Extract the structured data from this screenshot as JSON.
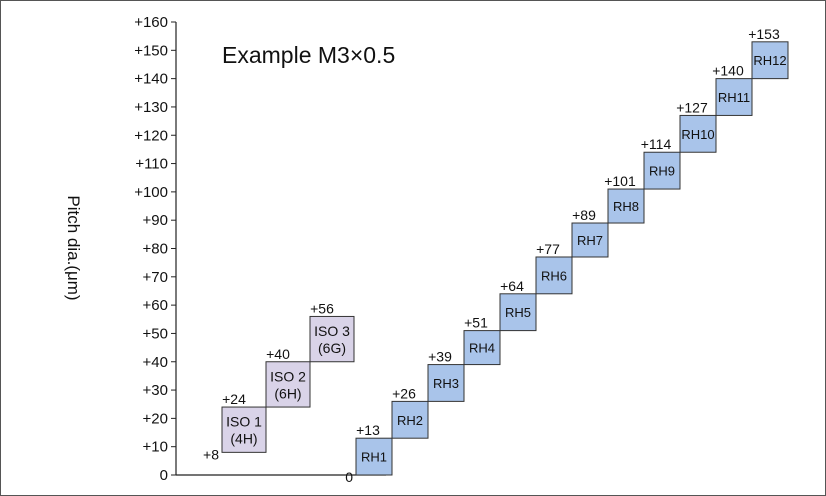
{
  "colors": {
    "frame": "#555555",
    "axis": "#222222",
    "iso_fill": "#d9d3e8",
    "rh_fill": "#a9c4ea",
    "box_stroke": "#333333"
  },
  "chart_data": {
    "type": "bar",
    "title": "Example M3×0.5",
    "ylabel": "Pitch dia.(μm)",
    "xlabel": "",
    "ylim": [
      0,
      160
    ],
    "ytick_step": 10,
    "ytick_labels": [
      "0",
      "+10",
      "+20",
      "+30",
      "+40",
      "+50",
      "+60",
      "+70",
      "+80",
      "+90",
      "+100",
      "+110",
      "+120",
      "+130",
      "+140",
      "+150",
      "+160"
    ],
    "grid": false,
    "series": [
      {
        "group": "iso",
        "boxes": [
          {
            "line1": "ISO 1",
            "line2": "(4H)",
            "low": 8,
            "high": 24,
            "low_label": "+8",
            "high_label": "+24"
          },
          {
            "line1": "ISO 2",
            "line2": "(6H)",
            "low": 24,
            "high": 40,
            "low_label": "",
            "high_label": "+40"
          },
          {
            "line1": "ISO 3",
            "line2": "(6G)",
            "low": 40,
            "high": 56,
            "low_label": "",
            "high_label": "+56"
          }
        ]
      },
      {
        "group": "rh",
        "boxes": [
          {
            "line1": "RH1",
            "low": 0,
            "high": 13,
            "low_label": "0",
            "high_label": "+13"
          },
          {
            "line1": "RH2",
            "low": 13,
            "high": 26,
            "low_label": "",
            "high_label": "+26"
          },
          {
            "line1": "RH3",
            "low": 26,
            "high": 39,
            "low_label": "",
            "high_label": "+39"
          },
          {
            "line1": "RH4",
            "low": 39,
            "high": 51,
            "low_label": "",
            "high_label": "+51"
          },
          {
            "line1": "RH5",
            "low": 51,
            "high": 64,
            "low_label": "",
            "high_label": "+64"
          },
          {
            "line1": "RH6",
            "low": 64,
            "high": 77,
            "low_label": "",
            "high_label": "+77"
          },
          {
            "line1": "RH7",
            "low": 77,
            "high": 89,
            "low_label": "",
            "high_label": "+89"
          },
          {
            "line1": "RH8",
            "low": 89,
            "high": 101,
            "low_label": "",
            "high_label": "+101"
          },
          {
            "line1": "RH9",
            "low": 101,
            "high": 114,
            "low_label": "",
            "high_label": "+114"
          },
          {
            "line1": "RH10",
            "low": 114,
            "high": 127,
            "low_label": "",
            "high_label": "+127"
          },
          {
            "line1": "RH11",
            "low": 127,
            "high": 140,
            "low_label": "",
            "high_label": "+140"
          },
          {
            "line1": "RH12",
            "low": 140,
            "high": 153,
            "low_label": "",
            "high_label": "+153"
          }
        ]
      }
    ]
  }
}
